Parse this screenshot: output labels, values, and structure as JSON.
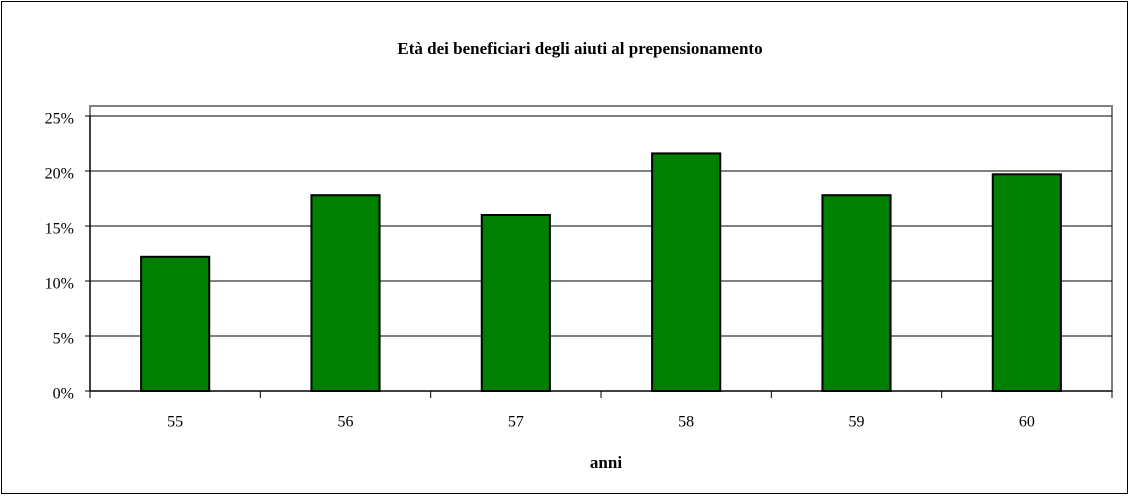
{
  "chart_data": {
    "type": "bar",
    "title": "Età dei beneficiari degli aiuti al prepensionamento",
    "x_label": "anni",
    "categories": [
      "55",
      "56",
      "57",
      "58",
      "59",
      "60"
    ],
    "values": [
      12.2,
      17.8,
      16.0,
      21.6,
      17.8,
      19.7
    ],
    "color": "#008000",
    "ylim": [
      0,
      25
    ],
    "yticks": [
      {
        "value": 0,
        "label": "0%"
      },
      {
        "value": 5,
        "label": "5%"
      },
      {
        "value": 10,
        "label": "10%"
      },
      {
        "value": 15,
        "label": "15%"
      },
      {
        "value": 20,
        "label": "20%"
      },
      {
        "value": 25,
        "label": "25%"
      }
    ],
    "grid": true
  }
}
